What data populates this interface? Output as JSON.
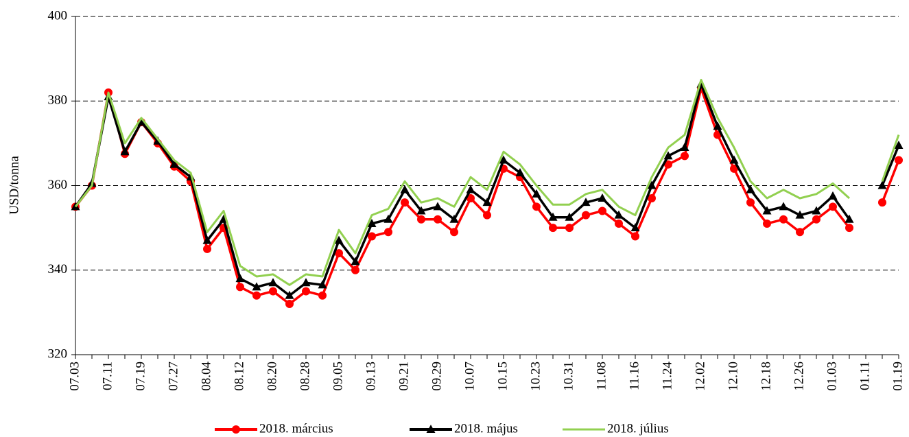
{
  "chart_data": {
    "type": "line",
    "ylabel": "USD/tonna",
    "categories": [
      "07.03",
      null,
      "07.11",
      null,
      "07.19",
      null,
      "07.27",
      null,
      "08.04",
      null,
      "08.12",
      null,
      "08.20",
      null,
      "08.28",
      null,
      "09.05",
      null,
      "09.13",
      null,
      "09.21",
      null,
      "09.29",
      null,
      "10.07",
      null,
      "10.15",
      null,
      "10.23",
      null,
      "10.31",
      null,
      "11.08",
      null,
      "11.16",
      null,
      "11.24",
      null,
      "12.02",
      null,
      "12.10",
      null,
      "12.18",
      null,
      "12.26",
      null,
      "01.03",
      null,
      "01.11",
      null,
      "01.19"
    ],
    "series": [
      {
        "name": "2018. március",
        "color": "#ff0000",
        "marker": "circle",
        "values": [
          355,
          360,
          382,
          367.5,
          375,
          370,
          364.5,
          361,
          345,
          350,
          336,
          334,
          335,
          332,
          335,
          334,
          344,
          340,
          348,
          349,
          356,
          352,
          352,
          349,
          357,
          353,
          364,
          362,
          355,
          350,
          350,
          353,
          354,
          351,
          348,
          357,
          365,
          367,
          383,
          372,
          364,
          356,
          351,
          352,
          349,
          352,
          355,
          350,
          null,
          356,
          366
        ]
      },
      {
        "name": "2018. május",
        "color": "#000000",
        "marker": "triangle",
        "values": [
          355,
          360.5,
          381,
          368,
          375,
          370.5,
          365,
          362,
          347,
          352,
          338,
          336,
          337,
          334,
          337,
          336.5,
          347,
          342,
          351,
          352,
          359,
          354,
          355,
          352,
          359,
          356,
          366,
          363,
          358,
          352.5,
          352.5,
          356,
          357,
          353,
          350,
          360,
          367,
          369,
          384,
          374,
          366,
          359,
          354,
          355,
          353,
          354,
          357.5,
          352,
          null,
          360,
          369.5
        ]
      },
      {
        "name": "2018. július",
        "color": "#92d050",
        "marker": "none",
        "values": [
          355,
          360,
          382,
          370,
          376,
          371,
          366,
          363,
          349,
          354,
          341,
          338.5,
          339,
          336.5,
          339,
          338.5,
          349.5,
          344,
          353,
          354.5,
          361,
          356,
          357,
          355,
          362,
          359,
          368,
          365,
          360,
          355.5,
          355.5,
          358,
          359,
          355,
          353,
          362,
          369,
          372,
          385,
          376,
          369,
          361,
          357,
          359,
          357,
          358,
          360.5,
          357,
          null,
          361,
          372
        ]
      }
    ],
    "ylim": [
      320,
      400
    ],
    "yticks": [
      320,
      340,
      360,
      380,
      400
    ],
    "grid": true
  }
}
